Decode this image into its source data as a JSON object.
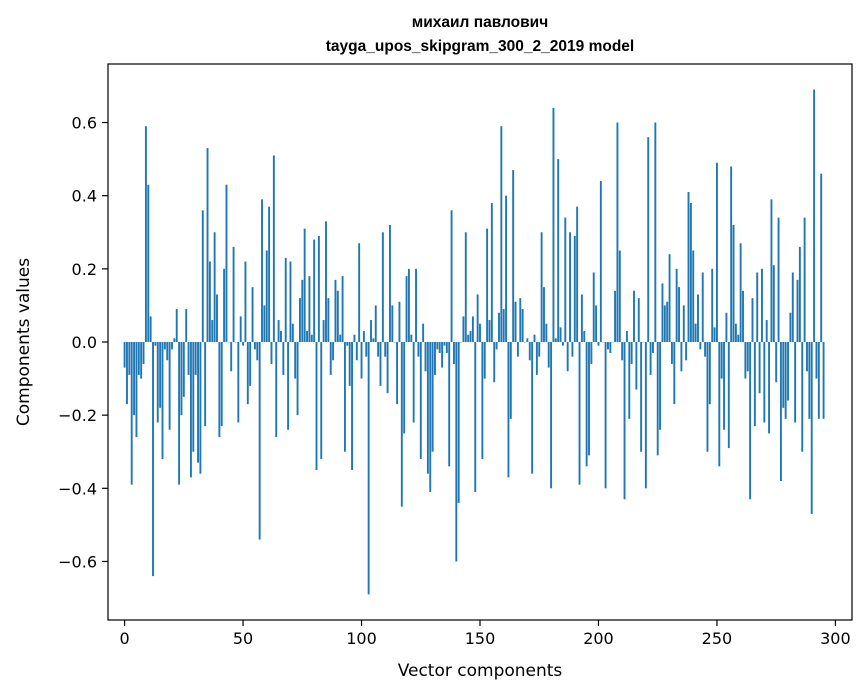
{
  "chart_data": {
    "type": "bar",
    "title": [
      "михаил павлович",
      "tayga_upos_skipgram_300_2_2019 model"
    ],
    "xlabel": "Vector components",
    "ylabel": "Components values",
    "xlim": [
      -7,
      307
    ],
    "ylim": [
      -0.76,
      0.76
    ],
    "xticks": [
      0,
      50,
      100,
      150,
      200,
      250,
      300
    ],
    "xtick_labels": [
      "0",
      "50",
      "100",
      "150",
      "200",
      "250",
      "300"
    ],
    "yticks": [
      -0.6,
      -0.4,
      -0.2,
      0.0,
      0.2,
      0.4,
      0.6
    ],
    "ytick_labels": [
      "−0.6",
      "−0.4",
      "−0.2",
      "0.0",
      "0.2",
      "0.4",
      "0.6"
    ],
    "color": "#1f77b4",
    "values": [
      -0.07,
      -0.17,
      -0.09,
      -0.39,
      -0.2,
      -0.26,
      -0.09,
      -0.1,
      -0.06,
      0.59,
      0.43,
      0.07,
      -0.64,
      -0.01,
      -0.22,
      -0.18,
      -0.32,
      -0.02,
      -0.05,
      -0.24,
      -0.02,
      0.01,
      0.09,
      -0.39,
      -0.2,
      -0.15,
      0.09,
      -0.09,
      -0.37,
      -0.3,
      -0.09,
      -0.33,
      -0.36,
      0.36,
      -0.23,
      0.53,
      0.22,
      0.06,
      0.3,
      0.13,
      -0.26,
      -0.23,
      0.2,
      0.43,
      0.0,
      -0.08,
      0.26,
      0.0,
      -0.22,
      0.07,
      -0.01,
      0.22,
      -0.17,
      -0.12,
      0.15,
      -0.02,
      -0.05,
      -0.54,
      0.39,
      0.1,
      0.25,
      0.37,
      -0.06,
      0.51,
      -0.26,
      0.06,
      0.03,
      -0.09,
      0.23,
      -0.24,
      0.22,
      0.05,
      -0.1,
      -0.2,
      0.12,
      0.17,
      0.31,
      0.03,
      0.18,
      0.02,
      0.28,
      -0.35,
      0.29,
      -0.32,
      0.06,
      0.33,
      0.12,
      -0.09,
      -0.05,
      0.17,
      0.14,
      0.02,
      0.18,
      -0.3,
      -0.01,
      -0.12,
      -0.35,
      0.02,
      -0.05,
      0.27,
      -0.1,
      0.03,
      -0.04,
      -0.69,
      0.06,
      0.01,
      0.1,
      -0.04,
      -0.12,
      0.3,
      -0.04,
      -0.14,
      0.32,
      0.1,
      0.0,
      -0.17,
      0.11,
      -0.45,
      -0.25,
      0.18,
      0.2,
      0.02,
      -0.22,
      0.2,
      -0.04,
      -0.32,
      0.05,
      -0.08,
      -0.36,
      -0.41,
      -0.3,
      -0.09,
      -0.02,
      -0.03,
      -0.07,
      -0.01,
      -0.03,
      -0.34,
      0.36,
      -0.06,
      -0.6,
      -0.44,
      0.0,
      0.07,
      0.3,
      0.02,
      0.03,
      0.07,
      -0.41,
      0.13,
      0.05,
      -0.32,
      -0.1,
      0.31,
      0.06,
      0.38,
      -0.11,
      -0.02,
      0.08,
      0.59,
      0.09,
      0.4,
      -0.37,
      -0.21,
      0.47,
      0.11,
      -0.04,
      0.12,
      0.09,
      0.0,
      0.01,
      -0.05,
      -0.36,
      0.02,
      -0.09,
      -0.04,
      0.3,
      0.15,
      0.05,
      -0.07,
      -0.4,
      0.64,
      0.01,
      0.5,
      0.04,
      -0.01,
      0.34,
      -0.08,
      0.3,
      -0.04,
      0.29,
      0.37,
      -0.39,
      0.13,
      0.03,
      -0.34,
      -0.31,
      -0.06,
      0.19,
      0.1,
      -0.01,
      0.44,
      0.0,
      -0.4,
      -0.02,
      -0.03,
      0.0,
      0.14,
      0.6,
      0.25,
      -0.05,
      -0.43,
      0.03,
      -0.21,
      -0.06,
      0.14,
      -0.13,
      0.12,
      -0.3,
      0.0,
      -0.4,
      0.56,
      -0.09,
      -0.03,
      0.6,
      -0.31,
      -0.24,
      0.16,
      0.1,
      0.11,
      0.24,
      -0.06,
      -0.17,
      0.2,
      0.15,
      -0.08,
      0.1,
      -0.05,
      0.41,
      0.38,
      0.25,
      0.05,
      0.13,
      -0.02,
      0.19,
      -0.04,
      -0.3,
      -0.17,
      0.2,
      0.04,
      0.49,
      -0.34,
      -0.1,
      -0.24,
      0.08,
      -0.29,
      0.48,
      0.32,
      0.05,
      0.02,
      0.27,
      0.14,
      -0.1,
      -0.08,
      -0.43,
      0.12,
      -0.23,
      0.19,
      -0.14,
      0.2,
      -0.22,
      0.06,
      -0.25,
      0.39,
      0.21,
      -0.11,
      0.34,
      -0.38,
      -0.18,
      -0.21,
      -0.16,
      0.08,
      0.19,
      -0.22,
      0.17,
      0.26,
      -0.3,
      0.34,
      -0.08,
      -0.21,
      -0.47,
      0.69,
      -0.1,
      -0.21,
      0.46,
      -0.21
    ]
  }
}
